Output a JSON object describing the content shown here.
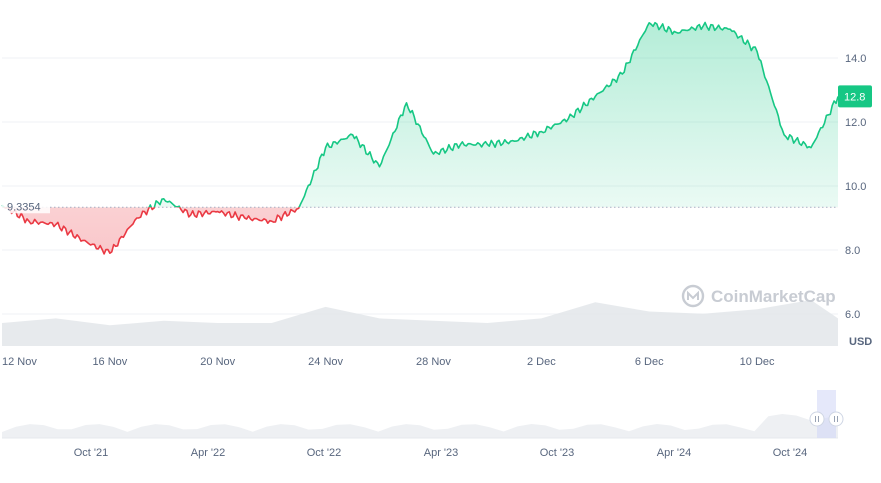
{
  "chart_data": {
    "type": "line",
    "unit": "USD",
    "baseline": 9.3354,
    "baseline_label": "9.3354",
    "last_value_label": "12.8",
    "ylim": [
      5.0,
      15.5
    ],
    "y_ticks": [
      "6.0",
      "8.0",
      "10.0",
      "12.0",
      "14.0"
    ],
    "x_start": "2024-11-12",
    "x_end": "2024-12-13",
    "x_ticks": [
      "12 Nov",
      "16 Nov",
      "20 Nov",
      "24 Nov",
      "28 Nov",
      "2 Dec",
      "6 Dec",
      "10 Dec"
    ],
    "x_tick_dates": [
      "2024-11-12",
      "2024-11-16",
      "2024-11-20",
      "2024-11-24",
      "2024-11-28",
      "2024-12-02",
      "2024-12-06",
      "2024-12-10"
    ],
    "series": [
      {
        "x": [
          "2024-11-12",
          "2024-11-13",
          "2024-11-14",
          "2024-11-15",
          "2024-11-16",
          "2024-11-17",
          "2024-11-18",
          "2024-11-19",
          "2024-11-20",
          "2024-11-21",
          "2024-11-22",
          "2024-11-23",
          "2024-11-24",
          "2024-11-25",
          "2024-11-26",
          "2024-11-27",
          "2024-11-28",
          "2024-11-29",
          "2024-11-30",
          "2024-12-01",
          "2024-12-02",
          "2024-12-03",
          "2024-12-04",
          "2024-12-05",
          "2024-12-06",
          "2024-12-07",
          "2024-12-08",
          "2024-12-09",
          "2024-12-10",
          "2024-12-11",
          "2024-12-12",
          "2024-12-13"
        ],
        "values": [
          9.4,
          8.9,
          8.8,
          8.3,
          7.9,
          9.0,
          9.6,
          9.1,
          9.2,
          9.0,
          8.9,
          9.3,
          11.2,
          11.6,
          10.6,
          12.6,
          11.0,
          11.3,
          11.3,
          11.4,
          11.7,
          12.1,
          12.8,
          13.5,
          15.1,
          14.8,
          15.0,
          14.9,
          14.2,
          11.6,
          11.2,
          12.8
        ]
      }
    ],
    "volume_series": {
      "x": [
        "2024-11-12",
        "2024-11-14",
        "2024-11-16",
        "2024-11-18",
        "2024-11-20",
        "2024-11-22",
        "2024-11-24",
        "2024-11-26",
        "2024-11-28",
        "2024-11-30",
        "2024-12-02",
        "2024-12-04",
        "2024-12-06",
        "2024-12-08",
        "2024-12-10",
        "2024-12-12",
        "2024-12-13"
      ],
      "values": [
        0.5,
        0.6,
        0.45,
        0.55,
        0.5,
        0.5,
        0.85,
        0.6,
        0.55,
        0.5,
        0.6,
        0.95,
        0.75,
        0.7,
        0.8,
        1.0,
        0.6
      ]
    },
    "navigator": {
      "x_ticks": [
        "Oct '21",
        "Apr '22",
        "Oct '22",
        "Apr '23",
        "Oct '23",
        "Apr '24",
        "Oct '24"
      ]
    },
    "watermark": "CoinMarketCap",
    "colors": {
      "up": "#16c784",
      "down": "#ea3943",
      "up_fill": "#16c784",
      "down_fill": "#ea3943",
      "label_bg": "#16c784"
    }
  }
}
